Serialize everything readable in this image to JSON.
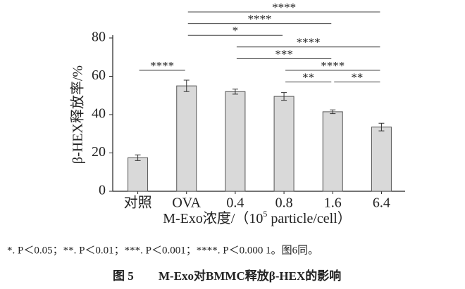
{
  "chart_data": {
    "type": "bar",
    "y_label": "β-HEX释放率/%",
    "x_label_parts": [
      "M-Exo浓度/（10",
      "5",
      " particle/cell）"
    ],
    "categories": [
      "对照",
      "OVA",
      "0.4",
      "0.8",
      "1.6",
      "6.4"
    ],
    "values": [
      17.5,
      55,
      52,
      49.5,
      41.5,
      33.5
    ],
    "errors": [
      1.5,
      3,
      1.3,
      2,
      1,
      2
    ],
    "color": "#d9d9d9",
    "ylim": [
      0,
      80
    ],
    "yticks": [
      0,
      20,
      40,
      60,
      80
    ],
    "significance": [
      {
        "from": "OVA",
        "to": "6.4",
        "label": "****"
      },
      {
        "from": "OVA",
        "to": "1.6",
        "label": "****"
      },
      {
        "from": "OVA",
        "to": "0.8",
        "label": "*"
      },
      {
        "from": "0.4",
        "to": "6.4",
        "label": "****"
      },
      {
        "from": "0.4",
        "to": "1.6",
        "label": "***"
      },
      {
        "from": "0.8",
        "to": "6.4",
        "label": "****"
      },
      {
        "from": "对照",
        "to": "OVA",
        "label": "****"
      },
      {
        "from": "0.8",
        "to": "1.6",
        "label": "**"
      },
      {
        "from": "1.6",
        "to": "6.4",
        "label": "**"
      }
    ]
  },
  "note": "*. P＜0.05；**. P＜0.01；***. P＜0.001；****. P＜0.000 1。图6同。",
  "caption": {
    "number": "图 5",
    "title": "M-Exo对BMMC释放β-HEX的影响"
  }
}
